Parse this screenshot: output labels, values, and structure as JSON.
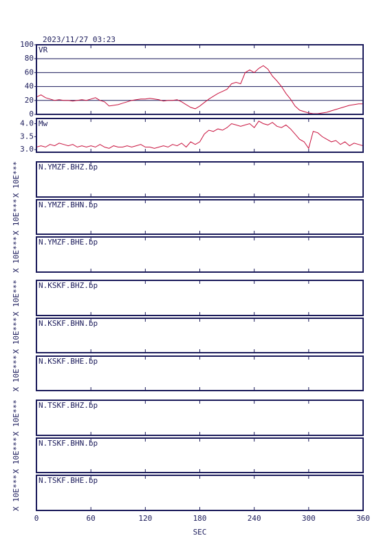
{
  "chart_data": [
    {
      "type": "line",
      "title": "2023/11/27 03:23",
      "label": "VR",
      "grid": true,
      "xlim": [
        0,
        360
      ],
      "xticks": [
        0,
        60,
        120,
        180,
        240,
        300,
        360
      ],
      "ylim": [
        0,
        100
      ],
      "yticks": [
        0,
        20,
        40,
        60,
        80,
        100
      ],
      "x": [
        0,
        5,
        10,
        15,
        20,
        25,
        30,
        35,
        40,
        45,
        50,
        55,
        60,
        65,
        70,
        75,
        80,
        85,
        90,
        95,
        100,
        105,
        110,
        115,
        120,
        125,
        130,
        135,
        140,
        145,
        150,
        155,
        160,
        165,
        170,
        175,
        180,
        185,
        190,
        195,
        200,
        205,
        210,
        215,
        220,
        225,
        230,
        235,
        240,
        245,
        250,
        255,
        260,
        265,
        270,
        275,
        280,
        285,
        290,
        295,
        300,
        305,
        310,
        315,
        320,
        325,
        330,
        335,
        340,
        345,
        350,
        355,
        360
      ],
      "series": [
        {
          "color": "#c8103c",
          "values": [
            25,
            28,
            24,
            22,
            20,
            21,
            20,
            20,
            19,
            20,
            21,
            20,
            22,
            24,
            20,
            18,
            12,
            13,
            14,
            16,
            18,
            20,
            21,
            22,
            22,
            23,
            22,
            21,
            19,
            20,
            20,
            21,
            18,
            14,
            10,
            8,
            12,
            17,
            22,
            26,
            30,
            33,
            36,
            44,
            46,
            44,
            60,
            64,
            60,
            66,
            70,
            65,
            55,
            48,
            40,
            30,
            22,
            12,
            6,
            4,
            2,
            1,
            1,
            2,
            3,
            5,
            7,
            9,
            11,
            13,
            14,
            15,
            15
          ]
        }
      ]
    },
    {
      "type": "line",
      "label": "Mw",
      "grid": false,
      "xlim": [
        0,
        360
      ],
      "xticks": [
        0,
        60,
        120,
        180,
        240,
        300,
        360
      ],
      "ylim": [
        2.9,
        4.2
      ],
      "yticks": [
        {
          "value": 3,
          "label": "3.0"
        },
        {
          "value": 3.5,
          "label": "3.5"
        },
        {
          "value": 4,
          "label": "4.0"
        }
      ],
      "x": [
        0,
        5,
        10,
        15,
        20,
        25,
        30,
        35,
        40,
        45,
        50,
        55,
        60,
        65,
        70,
        75,
        80,
        85,
        90,
        95,
        100,
        105,
        110,
        115,
        120,
        125,
        130,
        135,
        140,
        145,
        150,
        155,
        160,
        165,
        170,
        175,
        180,
        185,
        190,
        195,
        200,
        205,
        210,
        215,
        220,
        225,
        230,
        235,
        240,
        245,
        250,
        255,
        260,
        265,
        270,
        275,
        280,
        285,
        290,
        295,
        300,
        305,
        310,
        315,
        320,
        325,
        330,
        335,
        340,
        345,
        350,
        355,
        360
      ],
      "series": [
        {
          "color": "#c8103c",
          "values": [
            3.1,
            3.15,
            3.1,
            3.2,
            3.15,
            3.25,
            3.2,
            3.15,
            3.2,
            3.1,
            3.15,
            3.1,
            3.15,
            3.1,
            3.2,
            3.1,
            3.05,
            3.15,
            3.1,
            3.1,
            3.15,
            3.1,
            3.15,
            3.2,
            3.1,
            3.1,
            3.05,
            3.1,
            3.15,
            3.1,
            3.2,
            3.15,
            3.25,
            3.1,
            3.3,
            3.2,
            3.3,
            3.6,
            3.75,
            3.7,
            3.8,
            3.75,
            3.85,
            4.0,
            3.95,
            3.9,
            3.95,
            4.0,
            3.85,
            4.1,
            4.0,
            3.95,
            4.05,
            3.9,
            3.85,
            3.95,
            3.8,
            3.6,
            3.4,
            3.3,
            3.05,
            3.7,
            3.65,
            3.5,
            3.4,
            3.3,
            3.35,
            3.2,
            3.3,
            3.15,
            3.25,
            3.2,
            3.15
          ]
        }
      ]
    },
    {
      "type": "line",
      "label": "N.YMZF.BHZ.bp",
      "ylabel": "X 10E***",
      "xlim": [
        0,
        360
      ],
      "xticks": [
        0,
        60,
        120,
        180,
        240,
        300,
        360
      ]
    },
    {
      "type": "line",
      "label": "N.YMZF.BHN.bp",
      "ylabel": "X 10E***",
      "xlim": [
        0,
        360
      ],
      "xticks": [
        0,
        60,
        120,
        180,
        240,
        300,
        360
      ]
    },
    {
      "type": "line",
      "label": "N.YMZF.BHE.bp",
      "ylabel": "X 10E***",
      "xlim": [
        0,
        360
      ],
      "xticks": [
        0,
        60,
        120,
        180,
        240,
        300,
        360
      ]
    },
    {
      "type": "line",
      "label": "N.KSKF.BHZ.bp",
      "ylabel": "X 10E***",
      "xlim": [
        0,
        360
      ],
      "xticks": [
        0,
        60,
        120,
        180,
        240,
        300,
        360
      ]
    },
    {
      "type": "line",
      "label": "N.KSKF.BHN.bp",
      "ylabel": "X 10E***",
      "xlim": [
        0,
        360
      ],
      "xticks": [
        0,
        60,
        120,
        180,
        240,
        300,
        360
      ]
    },
    {
      "type": "line",
      "label": "N.KSKF.BHE.bp",
      "ylabel": "X 10E***",
      "xlim": [
        0,
        360
      ],
      "xticks": [
        0,
        60,
        120,
        180,
        240,
        300,
        360
      ]
    },
    {
      "type": "line",
      "label": "N.TSKF.BHZ.bp",
      "ylabel": "X 10E***",
      "xlim": [
        0,
        360
      ],
      "xticks": [
        0,
        60,
        120,
        180,
        240,
        300,
        360
      ]
    },
    {
      "type": "line",
      "label": "N.TSKF.BHN.bp",
      "ylabel": "X 10E***",
      "xlim": [
        0,
        360
      ],
      "xticks": [
        0,
        60,
        120,
        180,
        240,
        300,
        360
      ]
    },
    {
      "type": "line",
      "label": "N.TSKF.BHE.bp",
      "ylabel": "X 10E***",
      "xlabel": "SEC",
      "xlim": [
        0,
        360
      ],
      "xticks": [
        0,
        60,
        120,
        180,
        240,
        300,
        360
      ]
    }
  ]
}
